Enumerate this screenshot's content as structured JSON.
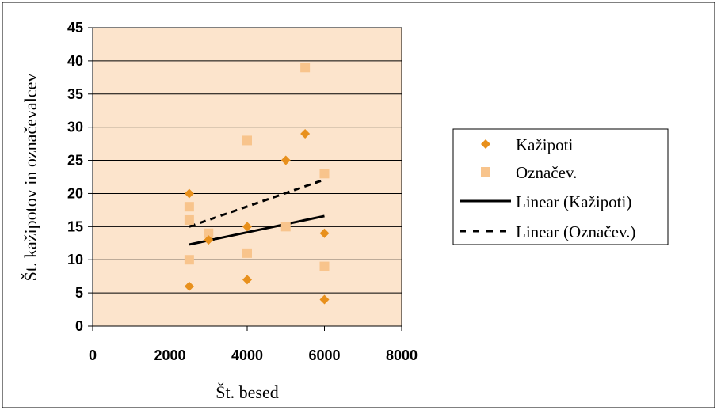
{
  "chart_data": {
    "type": "scatter",
    "title": "",
    "xlabel": "Št. besed",
    "ylabel": "Št. kažipotov in označevalcev",
    "xlim": [
      0,
      8000
    ],
    "ylim": [
      0,
      45
    ],
    "x_ticks": [
      "0",
      "2000",
      "4000",
      "6000",
      "8000"
    ],
    "y_ticks": [
      "0",
      "5",
      "10",
      "15",
      "20",
      "25",
      "30",
      "35",
      "40",
      "45"
    ],
    "grid": "horizontal",
    "legend_position": "right",
    "plot_background": "#FCE4CC",
    "series": [
      {
        "name": "Kažipoti",
        "marker": "diamond",
        "color": "#E8901C",
        "points": [
          [
            2500,
            20
          ],
          [
            2500,
            6
          ],
          [
            3000,
            13
          ],
          [
            4000,
            15
          ],
          [
            4000,
            7
          ],
          [
            5000,
            25
          ],
          [
            5500,
            29
          ],
          [
            6000,
            14
          ],
          [
            6000,
            4
          ]
        ]
      },
      {
        "name": "Označev.",
        "marker": "square",
        "color": "#F8C48C",
        "points": [
          [
            2500,
            18
          ],
          [
            2500,
            16
          ],
          [
            2500,
            10
          ],
          [
            3000,
            14
          ],
          [
            4000,
            28
          ],
          [
            4000,
            11
          ],
          [
            5000,
            15
          ],
          [
            5500,
            39
          ],
          [
            6000,
            23
          ],
          [
            6000,
            9
          ]
        ]
      },
      {
        "name": "Linear (Kažipoti)",
        "type": "trendline",
        "style": "solid",
        "color": "#000000",
        "x": [
          2500,
          6000
        ],
        "y": [
          12.3,
          16.6
        ]
      },
      {
        "name": "Linear (Označev.)",
        "type": "trendline",
        "style": "dashed",
        "color": "#000000",
        "x": [
          2500,
          6000
        ],
        "y": [
          15.0,
          22.1
        ]
      }
    ]
  }
}
